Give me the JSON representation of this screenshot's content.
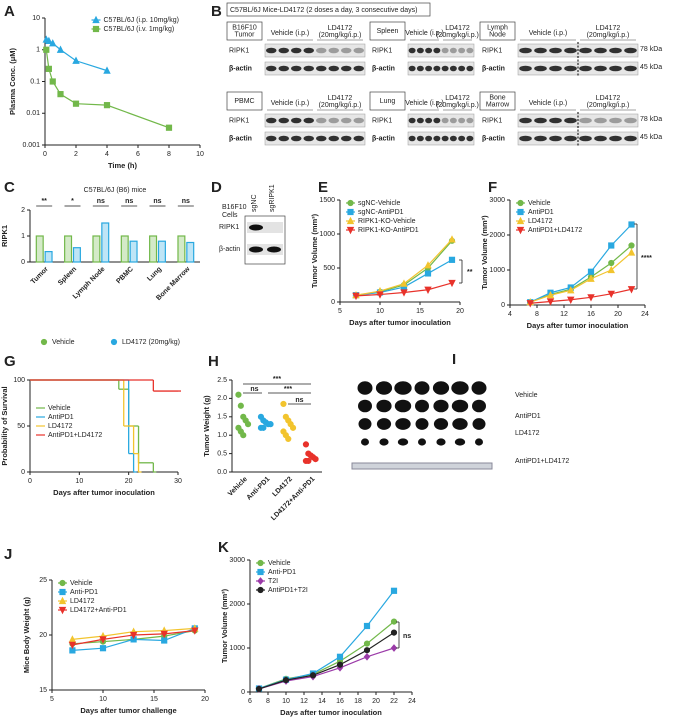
{
  "chart_data": [
    {
      "type": "line",
      "panel": "A",
      "xlabel": "Time (h)",
      "ylabel": "Plasma Conc. (μM)",
      "log_y": true,
      "xlim": [
        0,
        10
      ],
      "xticks": [
        0,
        2,
        4,
        6,
        8,
        10
      ],
      "ylim": [
        0.001,
        10
      ],
      "yticks": [
        0.001,
        0.01,
        0.1,
        1,
        10
      ],
      "legend": "upper right",
      "series": [
        {
          "name": "C57BL/6J (i.p. 10mg/kg)",
          "color": "#29a8e0",
          "marker": "triangle",
          "x": [
            0.083,
            0.25,
            0.5,
            1,
            2,
            4
          ],
          "values": [
            2.1,
            1.9,
            1.6,
            1.0,
            0.45,
            0.22
          ]
        },
        {
          "name": "C57BL/6J (i.v. 1mg/kg)",
          "color": "#72b84a",
          "marker": "square",
          "x": [
            0.083,
            0.25,
            0.5,
            1,
            2,
            4,
            8
          ],
          "values": [
            1.0,
            0.25,
            0.1,
            0.04,
            0.02,
            0.018,
            0.0035
          ]
        }
      ]
    },
    {
      "type": "blots",
      "panel": "B",
      "title": "C57BL/6J Mice-LD4172 (2 doses a day, 3 consecutive days)",
      "sections": [
        {
          "tissue": [
            "B16F10",
            "Tumor"
          ],
          "vehicle": "Vehicle (i.p.)",
          "treated": [
            "LD4172",
            "(20mg/kg/i.p.)"
          ],
          "rows": [
            "RIPK1",
            "β-actin"
          ]
        },
        {
          "tissue": [
            "Spleen"
          ],
          "vehicle": "Vehicle (i.p.)",
          "treated": [
            "LD4172",
            "(20mg/kg/i.p.)"
          ],
          "rows": [
            "RIPK1",
            "β-actin"
          ]
        },
        {
          "tissue": [
            "Lymph",
            "Node"
          ],
          "vehicle": "Vehicle (i.p.)",
          "treated": [
            "LD4172",
            "(20mg/kg/i.p.)"
          ],
          "rows": [
            "RIPK1",
            "β-actin"
          ],
          "kda": [
            "78 kDa",
            "45 kDa"
          ]
        },
        {
          "tissue": [
            "PBMC"
          ],
          "vehicle": "Vehicle (i.p.)",
          "treated": [
            "LD4172",
            "(20mg/kg/i.p.)"
          ],
          "rows": [
            "RIPK1",
            "β-actin"
          ]
        },
        {
          "tissue": [
            "Lung"
          ],
          "vehicle": "Vehicle (i.p.)",
          "treated": [
            "LD4172",
            "(20mg/kg/i.p.)"
          ],
          "rows": [
            "RIPK1",
            "β-actin"
          ]
        },
        {
          "tissue": [
            "Bone",
            "Marrow"
          ],
          "vehicle": "Vehicle (i.p.)",
          "treated": [
            "LD4172",
            "(20mg/kg/i.p.)"
          ],
          "rows": [
            "RIPK1",
            "β-actin"
          ],
          "kda": [
            "78 kDa",
            "45 kDa"
          ]
        }
      ]
    },
    {
      "type": "bar",
      "panel": "C",
      "title": "C57BL/6J (B6) mice",
      "ylabel": "RIPK1",
      "categories": [
        "Tumor",
        "Spleen",
        "Lymph Node",
        "PBMC",
        "Lung",
        "Bone Marrow"
      ],
      "ylim": [
        0,
        2
      ],
      "yticks": [
        0,
        1,
        2
      ],
      "legend": "bottom",
      "annotations": [
        "**",
        "*",
        "ns",
        "ns",
        "ns",
        "ns"
      ],
      "series": [
        {
          "name": "Vehicle",
          "color": "#72b84a",
          "values": [
            1,
            1,
            1,
            1,
            1,
            1
          ]
        },
        {
          "name": "LD4172 (20mg/kg)",
          "color": "#29a8e0",
          "values": [
            0.4,
            0.55,
            1.5,
            0.8,
            0.8,
            0.75
          ]
        }
      ]
    },
    {
      "type": "blot",
      "panel": "D",
      "cells": [
        "B16F10",
        "Cells"
      ],
      "lanes": [
        "sgNC",
        "sgRIPK1"
      ],
      "rows": [
        "RIPK1",
        "β-actin"
      ]
    },
    {
      "type": "line",
      "panel": "E",
      "xlabel": "Days after tumor inoculation",
      "ylabel": "Tumor Volume (mm³)",
      "xlim": [
        5,
        20
      ],
      "xticks": [
        5,
        10,
        15,
        20
      ],
      "ylim": [
        0,
        1500
      ],
      "yticks": [
        0,
        500,
        1000,
        1500
      ],
      "legend": "upper left",
      "annotations": [
        "**"
      ],
      "x": [
        7,
        10,
        13,
        16,
        19
      ],
      "series": [
        {
          "name": "sgNC-Vehicle",
          "color": "#72b84a",
          "marker": "circle",
          "values": [
            100,
            150,
            250,
            500,
            900
          ]
        },
        {
          "name": "sgNC-AntiPD1",
          "color": "#29a8e0",
          "marker": "square",
          "values": [
            100,
            140,
            220,
            420,
            620
          ]
        },
        {
          "name": "RIPK1-KO-Vehicle",
          "color": "#f2c42e",
          "marker": "triangle",
          "values": [
            100,
            160,
            270,
            540,
            920
          ]
        },
        {
          "name": "RIPK1-KO-AntiPD1",
          "color": "#e8322b",
          "marker": "inv-triangle",
          "values": [
            90,
            110,
            140,
            180,
            280
          ]
        }
      ]
    },
    {
      "type": "line",
      "panel": "F",
      "xlabel": "Days after tumor inoculation",
      "ylabel": "Tumor Volume (mm³)",
      "xlim": [
        4,
        24
      ],
      "xticks": [
        4,
        8,
        12,
        16,
        20,
        24
      ],
      "ylim": [
        0,
        3000
      ],
      "yticks": [
        0,
        1000,
        2000,
        3000
      ],
      "legend": "upper left",
      "annotations": [
        "****"
      ],
      "x": [
        7,
        10,
        13,
        16,
        19,
        22
      ],
      "series": [
        {
          "name": "Vehicle",
          "color": "#72b84a",
          "marker": "circle",
          "values": [
            80,
            300,
            450,
            800,
            1200,
            1700
          ]
        },
        {
          "name": "AntiPD1",
          "color": "#29a8e0",
          "marker": "square",
          "values": [
            80,
            350,
            500,
            950,
            1700,
            2300
          ]
        },
        {
          "name": "LD4172",
          "color": "#f2c42e",
          "marker": "triangle",
          "values": [
            80,
            280,
            420,
            750,
            1000,
            1500
          ]
        },
        {
          "name": "AntiPD1+LD4172",
          "color": "#e8322b",
          "marker": "inv-triangle",
          "values": [
            50,
            100,
            150,
            220,
            320,
            450
          ]
        }
      ]
    },
    {
      "type": "step",
      "panel": "G",
      "xlabel": "Days after tumor inoculation",
      "ylabel": "Probability of Survival",
      "xlim": [
        0,
        30
      ],
      "xticks": [
        0,
        10,
        20,
        30
      ],
      "ylim": [
        0,
        100
      ],
      "yticks": [
        0,
        50,
        100
      ],
      "legend": "center left",
      "series": [
        {
          "name": "Vehicle",
          "color": "#72b84a",
          "x": [
            0,
            18,
            20,
            22,
            25
          ],
          "values": [
            100,
            90,
            50,
            10,
            0
          ]
        },
        {
          "name": "AntiPD1",
          "color": "#29a8e0",
          "x": [
            0,
            20,
            21
          ],
          "values": [
            100,
            20,
            0
          ]
        },
        {
          "name": "LD4172",
          "color": "#f2c42e",
          "x": [
            0,
            19,
            21,
            22
          ],
          "values": [
            100,
            50,
            20,
            0
          ]
        },
        {
          "name": "AntiPD1+LD4172",
          "color": "#e8322b",
          "x": [
            0,
            25,
            30
          ],
          "values": [
            100,
            88,
            88
          ]
        }
      ]
    },
    {
      "type": "dot",
      "panel": "H",
      "ylabel": "Tumor Weight (g)",
      "categories": [
        "Vehicle",
        "Anti-PD1",
        "LD4172",
        "LD4172+Anti-PD1"
      ],
      "colors": [
        "#72b84a",
        "#29a8e0",
        "#f2c42e",
        "#e8322b"
      ],
      "ylim": [
        0,
        2.5
      ],
      "yticks": [
        {
          "value": 0,
          "label": "0.0"
        },
        0.5,
        {
          "value": 1,
          "label": "1.0"
        },
        1.5,
        {
          "value": 2,
          "label": "2.0"
        },
        2.5
      ],
      "annotations": [
        "ns",
        "***",
        "***",
        "ns"
      ],
      "points": [
        [
          2.1,
          1.8,
          1.5,
          1.4,
          1.3,
          1.2,
          1.1,
          1.0
        ],
        [
          1.5,
          1.4,
          1.35,
          1.3,
          1.3,
          1.2,
          1.2
        ],
        [
          1.85,
          1.5,
          1.4,
          1.3,
          1.2,
          1.1,
          1.0,
          0.9
        ],
        [
          0.75,
          0.5,
          0.45,
          0.4,
          0.35,
          0.3,
          0.3
        ]
      ]
    },
    {
      "type": "photo",
      "panel": "I",
      "rows": [
        "Vehicle",
        "AntiPD1",
        "LD4172",
        "AntiPD1+LD4172"
      ]
    },
    {
      "type": "line",
      "panel": "J",
      "xlabel": "Days after tumor challenge",
      "ylabel": "Mice Body Weight (g)",
      "xlim": [
        5,
        20
      ],
      "xticks": [
        5,
        10,
        15,
        20
      ],
      "ylim": [
        15,
        25
      ],
      "yticks": [
        15,
        20,
        25
      ],
      "legend": "upper left",
      "x": [
        7,
        10,
        13,
        16,
        19
      ],
      "series": [
        {
          "name": "Vehicle",
          "color": "#72b84a",
          "marker": "circle",
          "values": [
            19.2,
            19.4,
            19.6,
            19.9,
            20.4
          ]
        },
        {
          "name": "Anti-PD1",
          "color": "#29a8e0",
          "marker": "square",
          "values": [
            18.6,
            18.8,
            19.6,
            19.5,
            20.6
          ]
        },
        {
          "name": "LD4172",
          "color": "#f2c42e",
          "marker": "triangle",
          "values": [
            19.6,
            19.9,
            20.3,
            20.4,
            20.6
          ]
        },
        {
          "name": "LD4172+Anti-PD1",
          "color": "#e8322b",
          "marker": "inv-triangle",
          "values": [
            19.1,
            19.6,
            20.0,
            20.1,
            20.4
          ]
        }
      ]
    },
    {
      "type": "line",
      "panel": "K",
      "xlabel": "Days after tumor inoculation",
      "ylabel": "Tumor Volume (mm³)",
      "xlim": [
        6,
        24
      ],
      "xticks": [
        6,
        8,
        10,
        12,
        14,
        16,
        18,
        20,
        22,
        24
      ],
      "ylim": [
        0,
        3000
      ],
      "yticks": [
        0,
        1000,
        2000,
        3000
      ],
      "legend": "upper left",
      "annotations": [
        "ns"
      ],
      "x": [
        7,
        10,
        13,
        16,
        19,
        22
      ],
      "series": [
        {
          "name": "Vehicle",
          "color": "#72b84a",
          "marker": "circle",
          "values": [
            80,
            300,
            400,
            700,
            1100,
            1600
          ]
        },
        {
          "name": "Anti-PD1",
          "color": "#29a8e0",
          "marker": "square",
          "values": [
            80,
            280,
            420,
            800,
            1500,
            2300
          ]
        },
        {
          "name": "T2I",
          "color": "#9b3aa8",
          "marker": "diamond",
          "values": [
            70,
            250,
            350,
            550,
            800,
            1000
          ]
        },
        {
          "name": "AntiPD1+T2I",
          "color": "#222222",
          "marker": "circle",
          "values": [
            70,
            270,
            380,
            620,
            950,
            1350
          ]
        }
      ]
    }
  ]
}
